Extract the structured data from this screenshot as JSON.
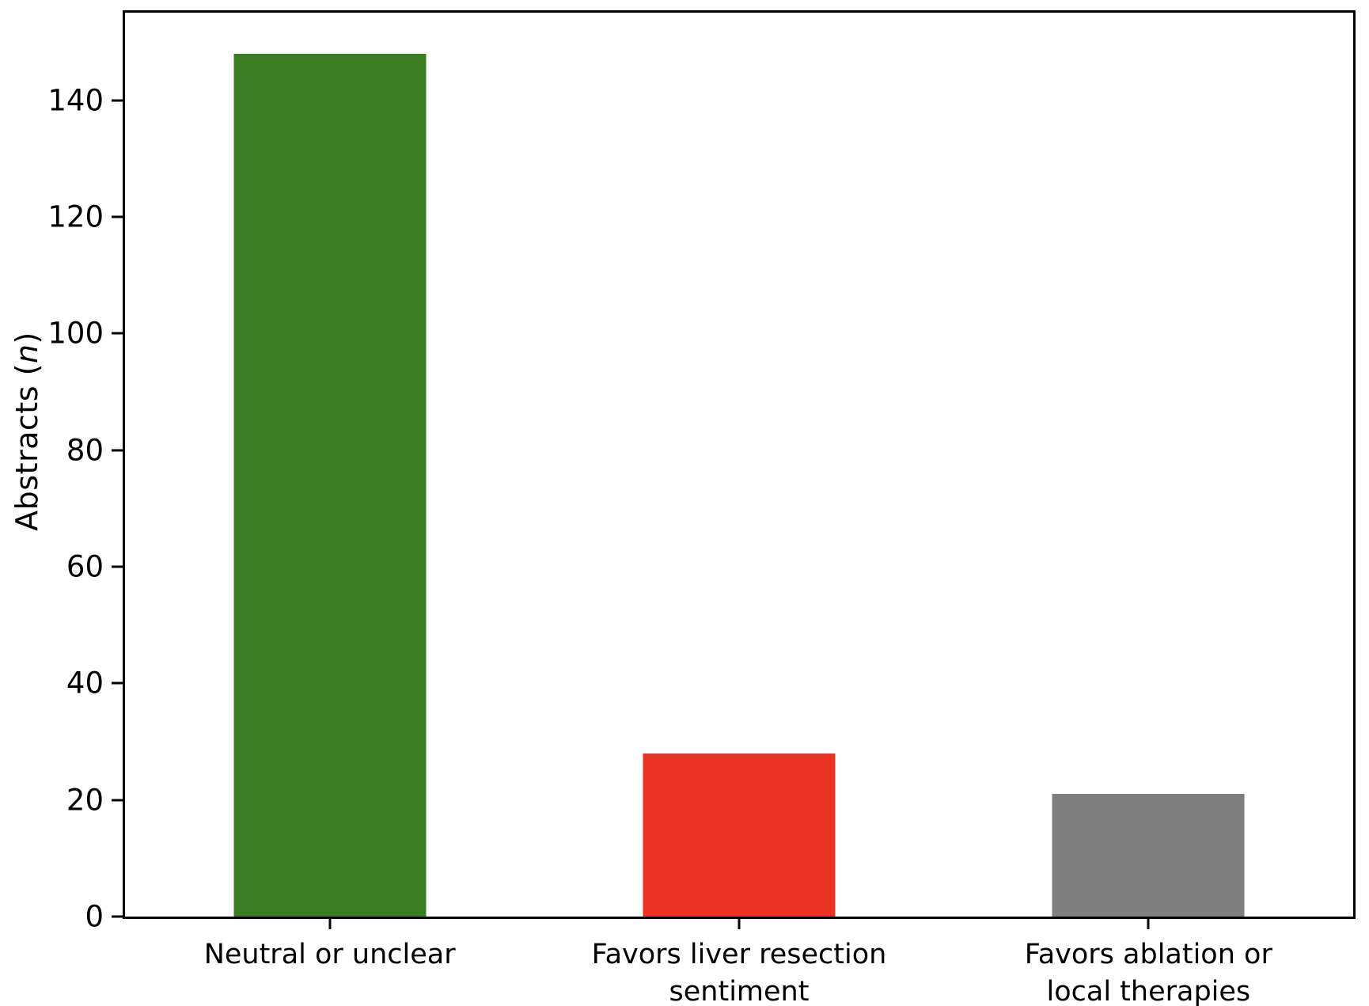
{
  "figure": {
    "background_color": "#ffffff",
    "axis_color": "#000000",
    "text_color": "#000000"
  },
  "chart_data": {
    "type": "bar",
    "title": "",
    "ylabel": {
      "prefix": "Abstracts (",
      "symbol": "n",
      "suffix": ")"
    },
    "categories": [
      {
        "id": "neutral-or-unclear",
        "lines": [
          "Neutral or unclear"
        ]
      },
      {
        "id": "favors-liver-resection-sentiment",
        "lines": [
          "Favors liver resection",
          "sentiment"
        ]
      },
      {
        "id": "favors-ablation-or-local-therapies",
        "lines": [
          "Favors ablation or",
          "local therapies"
        ]
      }
    ],
    "values": [
      148,
      28,
      21
    ],
    "bar_colors": [
      "#3a7d22",
      "#e93323",
      "#7f7f7f"
    ],
    "yticks": [
      0,
      20,
      40,
      60,
      80,
      100,
      120,
      140
    ],
    "ylim": [
      0,
      155
    ],
    "grid": false,
    "legend_position": "none",
    "tick_direction": "out"
  }
}
